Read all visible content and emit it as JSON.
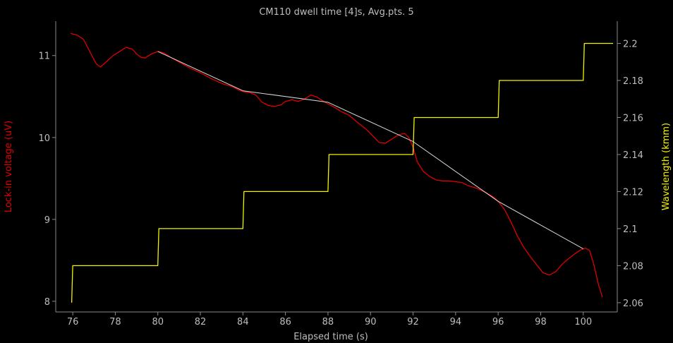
{
  "colors": {
    "background": "#000000",
    "axis": "#8a8a8a",
    "text": "#bdbdbd",
    "voltage": "#e00000",
    "wavelength": "#f2f200",
    "fit": "#d8d8d8"
  },
  "chart_data": {
    "type": "line",
    "title": "CM110 dwell time [4]s, Avg.pts. 5",
    "xlabel": "Elapsed time (s)",
    "ylabel_left": "Lock-in voltage (uV)",
    "ylabel_right": "Wavelength (kmm)",
    "xlim": [
      75.2,
      101.6
    ],
    "ylim_left": [
      7.87,
      11.42
    ],
    "ylim_right": [
      2.055,
      2.212
    ],
    "x_ticks": [
      76,
      78,
      80,
      82,
      84,
      86,
      88,
      90,
      92,
      94,
      96,
      98,
      100
    ],
    "x_tick_labels": [
      "76",
      "78",
      "80",
      "82",
      "84",
      "86",
      "88",
      "90",
      "92",
      "94",
      "96",
      "98",
      "100"
    ],
    "y_left_ticks": [
      8,
      9,
      10,
      11
    ],
    "y_left_tick_labels": [
      "8",
      "9",
      "10",
      "11"
    ],
    "y_right_ticks": [
      2.06,
      2.08,
      2.1,
      2.12,
      2.14,
      2.16,
      2.18,
      2.2
    ],
    "y_right_tick_labels": [
      "2.06",
      "2.08",
      "2.1",
      "2.12",
      "2.14",
      "2.16",
      "2.18",
      "2.2"
    ],
    "grid": false,
    "series": [
      {
        "axis": "left",
        "color": "#e00000",
        "x": [
          75.9,
          76.2,
          76.5,
          76.8,
          77.1,
          77.3,
          77.6,
          77.9,
          78.2,
          78.5,
          78.8,
          79.0,
          79.2,
          79.4,
          79.7,
          80.0,
          80.3,
          80.6,
          81.0,
          81.5,
          82.0,
          82.5,
          83.0,
          83.5,
          83.8,
          84.0,
          84.3,
          84.6,
          84.9,
          85.2,
          85.5,
          85.8,
          86.0,
          86.3,
          86.6,
          86.9,
          87.2,
          87.5,
          87.8,
          88.0,
          88.3,
          88.6,
          89.0,
          89.4,
          89.8,
          90.1,
          90.4,
          90.7,
          91.0,
          91.3,
          91.6,
          91.8,
          92.0,
          92.2,
          92.5,
          92.8,
          93.1,
          93.4,
          93.7,
          94.0,
          94.3,
          94.6,
          95.0,
          95.4,
          95.8,
          96.0,
          96.3,
          96.6,
          96.9,
          97.2,
          97.5,
          97.8,
          98.1,
          98.4,
          98.7,
          99.0,
          99.3,
          99.6,
          99.9,
          100.1,
          100.3,
          100.5,
          100.7,
          100.9
        ],
        "y": [
          11.27,
          11.25,
          11.2,
          11.05,
          10.9,
          10.86,
          10.93,
          11.0,
          11.05,
          11.1,
          11.08,
          11.02,
          10.98,
          10.97,
          11.02,
          11.05,
          11.03,
          10.98,
          10.92,
          10.85,
          10.79,
          10.72,
          10.66,
          10.62,
          10.58,
          10.56,
          10.55,
          10.52,
          10.43,
          10.39,
          10.38,
          10.4,
          10.44,
          10.46,
          10.44,
          10.47,
          10.52,
          10.49,
          10.44,
          10.41,
          10.37,
          10.32,
          10.27,
          10.18,
          10.1,
          10.02,
          9.94,
          9.93,
          9.98,
          10.03,
          10.05,
          10.0,
          9.88,
          9.7,
          9.58,
          9.52,
          9.48,
          9.47,
          9.47,
          9.46,
          9.45,
          9.41,
          9.38,
          9.33,
          9.27,
          9.22,
          9.12,
          8.97,
          8.8,
          8.66,
          8.55,
          8.45,
          8.35,
          8.32,
          8.36,
          8.45,
          8.52,
          8.58,
          8.63,
          8.65,
          8.62,
          8.45,
          8.22,
          8.05
        ]
      },
      {
        "axis": "right",
        "color": "#f2f200",
        "x": [
          75.95,
          76.0,
          80.0,
          80.05,
          84.0,
          84.05,
          88.0,
          88.05,
          92.0,
          92.05,
          96.0,
          96.05,
          100.0,
          100.05,
          101.4
        ],
        "y": [
          2.06,
          2.08,
          2.08,
          2.1,
          2.1,
          2.12,
          2.12,
          2.14,
          2.14,
          2.16,
          2.16,
          2.18,
          2.18,
          2.2,
          2.2
        ]
      },
      {
        "axis": "left",
        "color": "#d8d8d8",
        "x": [
          80.0,
          84.0,
          88.0,
          92.0,
          96.0,
          100.0
        ],
        "y": [
          11.05,
          10.57,
          10.43,
          9.95,
          9.22,
          8.64
        ]
      }
    ]
  }
}
